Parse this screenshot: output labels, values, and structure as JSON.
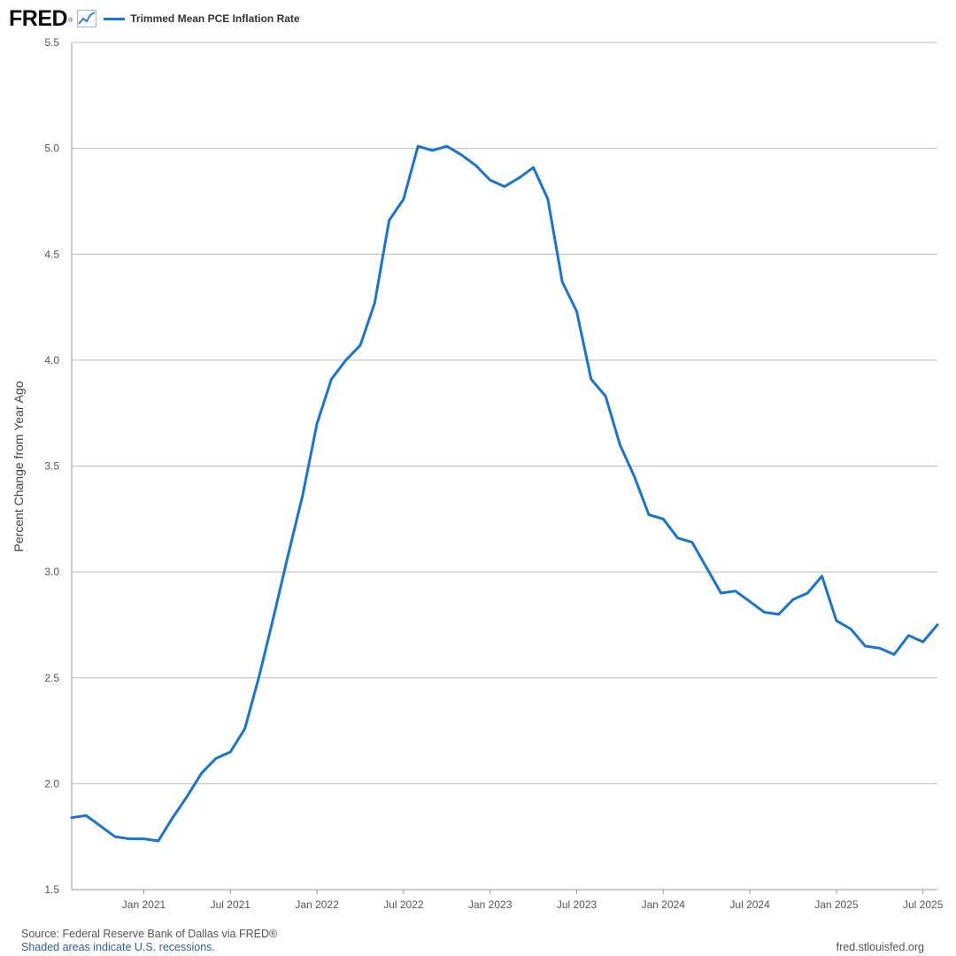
{
  "header": {
    "logo_text": "FRED",
    "logo_mark": "®",
    "logo_icon": "line-chart-icon"
  },
  "colors": {
    "series": "#1a74d1",
    "grid": "#bcbcbc",
    "axis": "#999999"
  },
  "chart_data": {
    "type": "line",
    "title": "",
    "ylabel": "Percent Change from Year Ago",
    "xlabel": "",
    "ylim": [
      1.5,
      5.5
    ],
    "yticks": [
      1.5,
      2.0,
      2.5,
      3.0,
      3.5,
      4.0,
      4.5,
      5.0,
      5.5
    ],
    "ytick_labels": [
      "1.5",
      "2.0",
      "2.5",
      "3.0",
      "3.5",
      "4.0",
      "4.5",
      "5.0",
      "5.5"
    ],
    "xlim": [
      "2020-08",
      "2025-08"
    ],
    "xticks": [
      "2021-01",
      "2021-07",
      "2022-01",
      "2022-07",
      "2023-01",
      "2023-07",
      "2024-01",
      "2024-07",
      "2025-01",
      "2025-07"
    ],
    "xtick_labels": [
      "Jan 2021",
      "Jul 2021",
      "Jan 2022",
      "Jul 2022",
      "Jan 2023",
      "Jul 2023",
      "Jan 2024",
      "Jul 2024",
      "Jan 2025",
      "Jul 2025"
    ],
    "grid": true,
    "legend": "top-left",
    "series": [
      {
        "name": "Trimmed Mean PCE Inflation Rate",
        "x": [
          "2020-08",
          "2020-09",
          "2020-10",
          "2020-11",
          "2020-12",
          "2021-01",
          "2021-02",
          "2021-03",
          "2021-04",
          "2021-05",
          "2021-06",
          "2021-07",
          "2021-08",
          "2021-09",
          "2021-10",
          "2021-11",
          "2021-12",
          "2022-01",
          "2022-02",
          "2022-03",
          "2022-04",
          "2022-05",
          "2022-06",
          "2022-07",
          "2022-08",
          "2022-09",
          "2022-10",
          "2022-11",
          "2022-12",
          "2023-01",
          "2023-02",
          "2023-03",
          "2023-04",
          "2023-05",
          "2023-06",
          "2023-07",
          "2023-08",
          "2023-09",
          "2023-10",
          "2023-11",
          "2023-12",
          "2024-01",
          "2024-02",
          "2024-03",
          "2024-04",
          "2024-05",
          "2024-06",
          "2024-07",
          "2024-08",
          "2024-09",
          "2024-10",
          "2024-11",
          "2024-12",
          "2025-01",
          "2025-02",
          "2025-03",
          "2025-04",
          "2025-05",
          "2025-06",
          "2025-07",
          "2025-08"
        ],
        "values": [
          1.84,
          1.85,
          1.8,
          1.75,
          1.74,
          1.74,
          1.73,
          1.84,
          1.94,
          2.05,
          2.12,
          2.15,
          2.26,
          2.51,
          2.79,
          3.08,
          3.36,
          3.7,
          3.91,
          4.0,
          4.07,
          4.27,
          4.66,
          4.76,
          5.01,
          4.99,
          5.01,
          4.97,
          4.92,
          4.85,
          4.82,
          4.86,
          4.91,
          4.76,
          4.37,
          4.23,
          3.91,
          3.83,
          3.6,
          3.45,
          3.27,
          3.25,
          3.16,
          3.14,
          3.02,
          2.9,
          2.91,
          2.86,
          2.81,
          2.8,
          2.87,
          2.9,
          2.98,
          2.77,
          2.73,
          2.65,
          2.64,
          2.61,
          2.7,
          2.67,
          2.75
        ]
      }
    ]
  },
  "footer": {
    "source": "Source: Federal Reserve Bank of Dallas via FRED®",
    "shaded_note": "Shaded areas indicate U.S. recessions.",
    "site": "fred.stlouisfed.org"
  }
}
